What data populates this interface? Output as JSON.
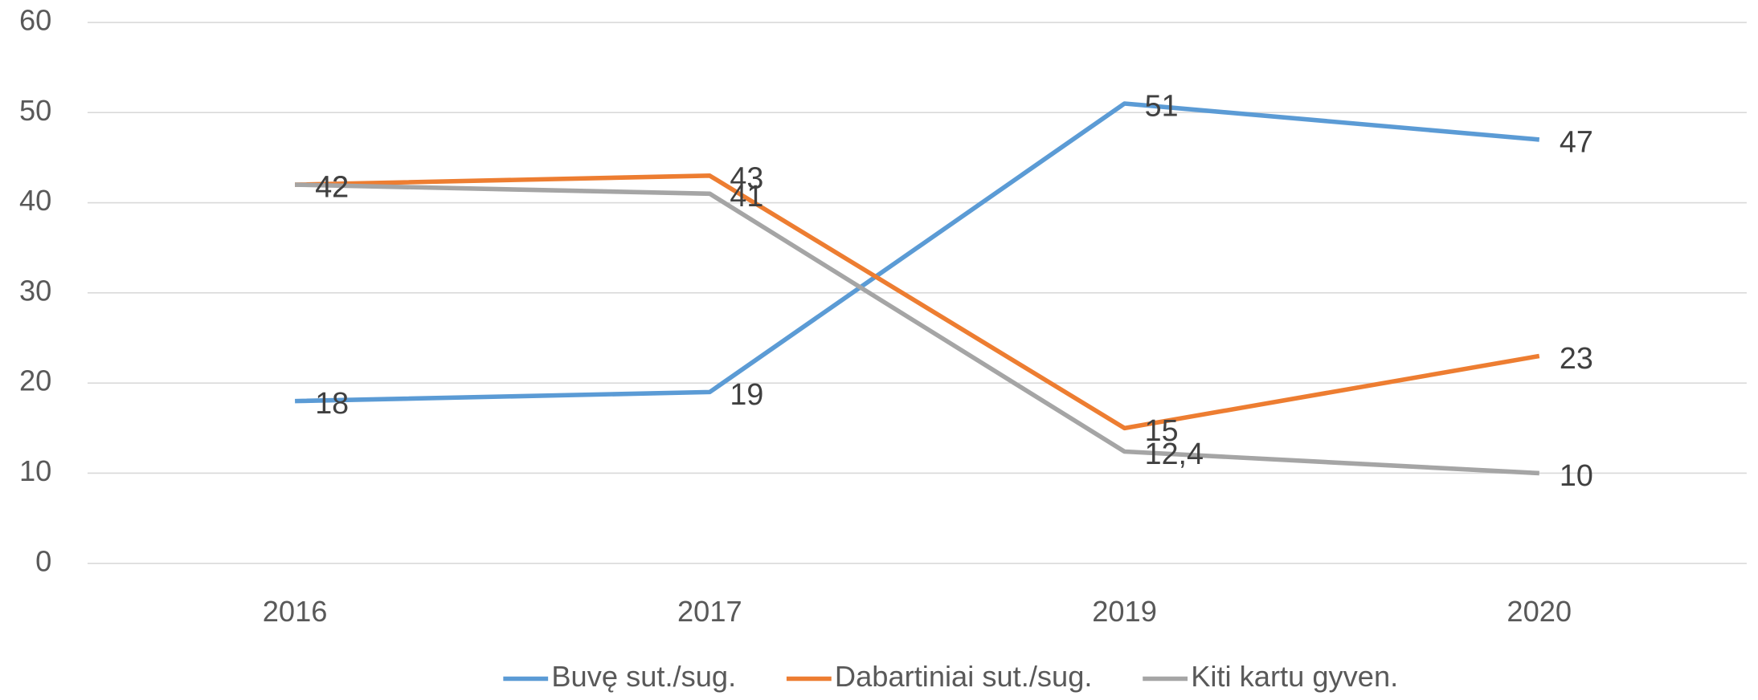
{
  "chart_data": {
    "type": "line",
    "categories": [
      "2016",
      "2017",
      "2019",
      "2020"
    ],
    "series": [
      {
        "name": "Buvę sut./sug.",
        "color": "#5b9bd5",
        "values": [
          18,
          19,
          51,
          47
        ]
      },
      {
        "name": "Dabartiniai sut./sug.",
        "color": "#ed7d31",
        "values": [
          42,
          43,
          15,
          23
        ]
      },
      {
        "name": "Kiti kartu gyven.",
        "color": "#a5a5a5",
        "values": [
          42,
          41,
          12.4,
          10
        ],
        "value_labels": [
          "42",
          "41",
          "12,4",
          "10"
        ]
      }
    ],
    "ylim": [
      0,
      60
    ],
    "yticks": [
      0,
      10,
      20,
      30,
      40,
      50,
      60
    ],
    "grid": true,
    "legend": "bottom"
  }
}
